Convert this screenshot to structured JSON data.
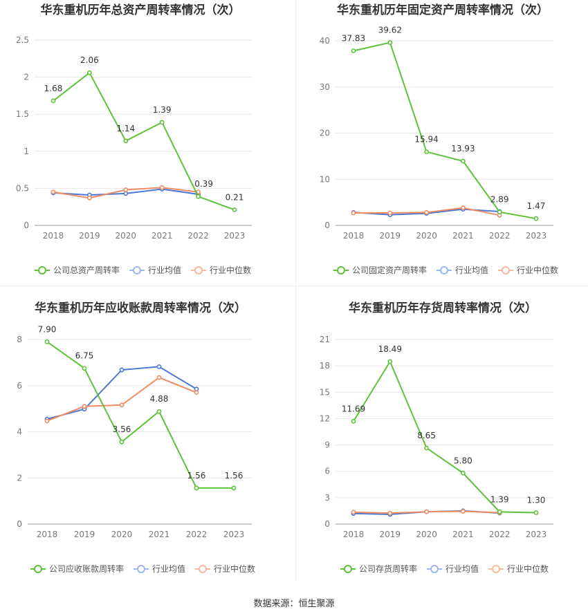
{
  "source_text": "数据来源：恒生聚源",
  "legend_labels": {
    "avg": "行业均值",
    "median": "行业中位数"
  },
  "colors": {
    "company": "#5cc338",
    "avg": "#4a78d6",
    "median": "#f08c63",
    "avg_legend": "#9bb6ea",
    "median_legend": "#f7b9a0"
  },
  "chart_data": [
    {
      "type": "line",
      "title": "华东重机历年总资产周转率情况（次）",
      "categories": [
        "2018",
        "2019",
        "2020",
        "2021",
        "2022",
        "2023"
      ],
      "yticks": [
        "0",
        "0.5",
        "1",
        "1.5",
        "2",
        "2.5"
      ],
      "ylim": [
        0,
        2.5
      ],
      "series": [
        {
          "name": "公司总资产周转率",
          "values": [
            1.68,
            2.06,
            1.14,
            1.39,
            0.39,
            0.21
          ],
          "labels": [
            "1.68",
            "2.06",
            "1.14",
            "1.39",
            "0.39",
            "0.21"
          ]
        },
        {
          "name": "行业均值",
          "values": [
            0.44,
            0.41,
            0.43,
            0.49,
            0.42,
            null
          ]
        },
        {
          "name": "行业中位数",
          "values": [
            0.45,
            0.37,
            0.48,
            0.51,
            0.45,
            null
          ]
        }
      ]
    },
    {
      "type": "line",
      "title": "华东重机历年固定资产周转率情况（次）",
      "categories": [
        "2018",
        "2019",
        "2020",
        "2021",
        "2022",
        "2023"
      ],
      "yticks": [
        "0",
        "10",
        "20",
        "30",
        "40"
      ],
      "ylim": [
        0,
        40
      ],
      "series": [
        {
          "name": "公司固定资产周转率",
          "values": [
            37.83,
            39.62,
            15.94,
            13.93,
            2.89,
            1.47
          ],
          "labels": [
            "37.83",
            "39.62",
            "15.94",
            "13.93",
            "2.89",
            "1.47"
          ]
        },
        {
          "name": "行业均值",
          "values": [
            2.8,
            2.3,
            2.6,
            3.5,
            3.0,
            null
          ]
        },
        {
          "name": "行业中位数",
          "values": [
            2.7,
            2.7,
            2.8,
            3.8,
            2.2,
            null
          ]
        }
      ]
    },
    {
      "type": "line",
      "title": "华东重机历年应收账款周转率情况（次）",
      "categories": [
        "2018",
        "2019",
        "2020",
        "2021",
        "2022",
        "2023"
      ],
      "yticks": [
        "0",
        "2",
        "4",
        "6",
        "8"
      ],
      "ylim": [
        0,
        8
      ],
      "series": [
        {
          "name": "公司应收账款周转率",
          "values": [
            7.9,
            6.75,
            3.56,
            4.88,
            1.56,
            1.56
          ],
          "labels": [
            "7.90",
            "6.75",
            "3.56",
            "4.88",
            "1.56",
            "1.56"
          ]
        },
        {
          "name": "行业均值",
          "values": [
            4.55,
            4.98,
            6.68,
            6.82,
            5.85,
            null
          ]
        },
        {
          "name": "行业中位数",
          "values": [
            4.47,
            5.1,
            5.16,
            6.35,
            5.7,
            null
          ]
        }
      ]
    },
    {
      "type": "line",
      "title": "华东重机历年存货周转率情况（次）",
      "categories": [
        "2018",
        "2019",
        "2020",
        "2021",
        "2022",
        "2023"
      ],
      "yticks": [
        "0",
        "3",
        "6",
        "9",
        "12",
        "15",
        "18",
        "21"
      ],
      "ylim": [
        0,
        21
      ],
      "series": [
        {
          "name": "公司存货周转率",
          "values": [
            11.69,
            18.49,
            8.65,
            5.8,
            1.39,
            1.3
          ],
          "labels": [
            "11.69",
            "18.49",
            "8.65",
            "5.80",
            "1.39",
            "1.30"
          ]
        },
        {
          "name": "行业均值",
          "values": [
            1.2,
            1.1,
            1.4,
            1.5,
            1.25,
            null
          ]
        },
        {
          "name": "行业中位数",
          "values": [
            1.35,
            1.25,
            1.4,
            1.45,
            1.3,
            null
          ]
        }
      ]
    }
  ]
}
